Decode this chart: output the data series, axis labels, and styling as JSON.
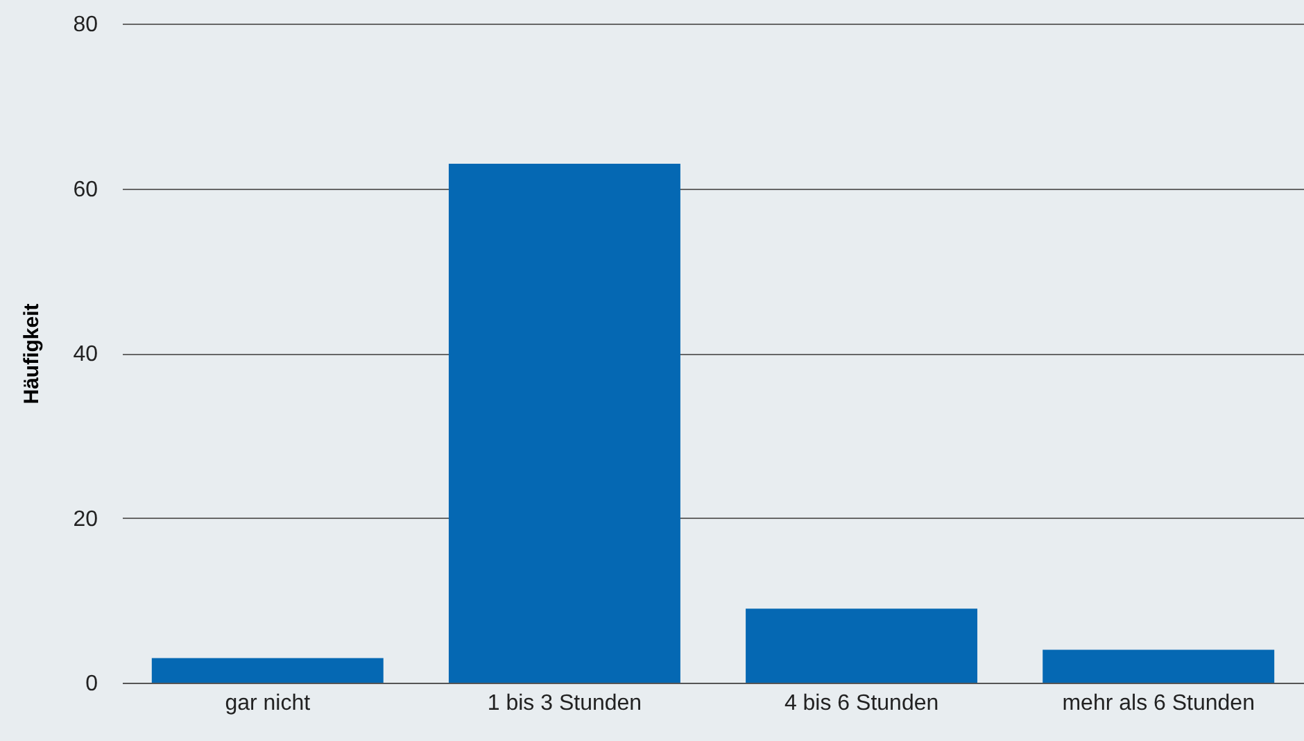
{
  "chart_data": {
    "type": "bar",
    "ylabel": "Häufigkeit",
    "categories": [
      "gar nicht",
      "1 bis 3 Stunden",
      "4 bis 6 Stunden",
      "mehr als 6 Stunden"
    ],
    "values": [
      3,
      63,
      9,
      4
    ],
    "color": "#0568b3",
    "ylim": [
      0,
      80
    ],
    "yticks": [
      0,
      20,
      40,
      60,
      80
    ],
    "grid": "y"
  }
}
